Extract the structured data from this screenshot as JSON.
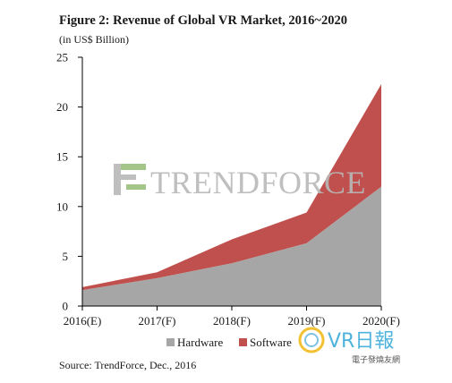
{
  "figure": {
    "title": "Figure 2: Revenue of Global VR Market, 2016~2020",
    "subtitle": "(in US$ Billion)",
    "source": "Source: TrendForce, Dec., 2016"
  },
  "watermarks": {
    "trendforce_text": "TRENDFORCE",
    "site_logo_text": "VR日報",
    "site_logo_sub": "電子發燒友網"
  },
  "colors": {
    "hardware": "#a6a6a6",
    "software": "#c0504d",
    "axis": "#000000"
  },
  "chart_data": {
    "type": "area",
    "stacked": true,
    "categories": [
      "2016(E)",
      "2017(F)",
      "2018(F)",
      "2019(F)",
      "2020(F)"
    ],
    "series": [
      {
        "name": "Hardware",
        "values": [
          1.6,
          2.8,
          4.3,
          6.3,
          12.0
        ]
      },
      {
        "name": "Software",
        "values": [
          0.3,
          0.6,
          2.4,
          3.1,
          10.3
        ]
      }
    ],
    "yticks": [
      0,
      5,
      10,
      15,
      20,
      25
    ],
    "ylim": [
      0,
      25
    ],
    "grid": false,
    "legend_position": "bottom"
  }
}
